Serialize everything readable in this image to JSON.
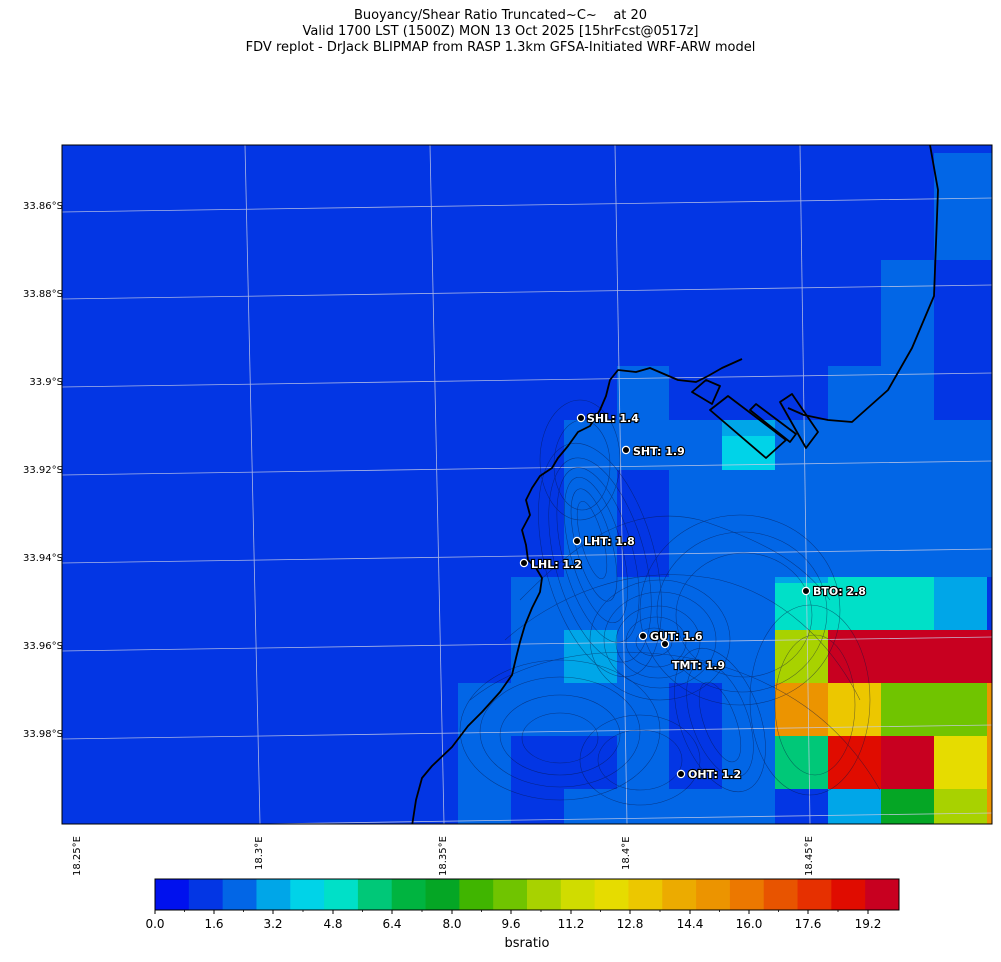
{
  "title_lines": [
    "Buoyancy/Shear Ratio Truncated~C~    at 20",
    "Valid 1700 LST (1500Z) MON 13 Oct 2025 [15hrFcst@0517z]",
    "FDV replot - DrJack BLIPMAP from RASP 1.3km GFSA-Initiated WRF-ARW model"
  ],
  "latitude_labels": [
    "33.86°S",
    "33.88°S",
    "33.9°S",
    "33.92°S",
    "33.94°S",
    "33.96°S",
    "33.98°S"
  ],
  "longitude_labels": [
    "18.25°E",
    "18.3°E",
    "18.35°E",
    "18.4°E",
    "18.45°E"
  ],
  "stations": [
    {
      "label": "SHL: 1.4",
      "value": 1.4
    },
    {
      "label": "SHT: 1.9",
      "value": 1.9
    },
    {
      "label": "LHT: 1.8",
      "value": 1.8
    },
    {
      "label": "LHL: 1.2",
      "value": 1.2
    },
    {
      "label": "BTO: 2.8",
      "value": 2.8
    },
    {
      "label": "GUT: 1.6",
      "value": 1.6
    },
    {
      "label": "TMT: 1.9",
      "value": 1.9
    },
    {
      "label": "OHT: 1.2",
      "value": 1.2
    }
  ],
  "colorbar": {
    "title": "bsratio",
    "tick_labels": [
      "0.0",
      "1.6",
      "3.2",
      "4.8",
      "6.4",
      "8.0",
      "9.6",
      "11.2",
      "12.8",
      "14.4",
      "16.0",
      "17.6",
      "19.2"
    ],
    "min": 0,
    "max": 20,
    "colors": [
      "#0011ee",
      "#0336e4",
      "#0266e6",
      "#00a6e8",
      "#00d3e8",
      "#00e0c8",
      "#00c878",
      "#00b440",
      "#05a625",
      "#40b500",
      "#70c400",
      "#a8d200",
      "#d0dc00",
      "#e6dc00",
      "#ecc700",
      "#ecab00",
      "#ec9400",
      "#ec7800",
      "#e85400",
      "#e63000",
      "#e00c00",
      "#c80020"
    ]
  },
  "field_colors": {
    "c1": "#0336e4",
    "c2": "#0266e6",
    "c3": "#00a6e8",
    "c4": "#00d3e8",
    "c5": "#00e0c8",
    "c6": "#00c878",
    "c7": "#05a625",
    "c9": "#70c400",
    "c10": "#a8d200",
    "c12": "#e6dc00",
    "c13": "#ecc700",
    "c15": "#ec9400",
    "c20": "#e00c00",
    "c21": "#c80020"
  }
}
